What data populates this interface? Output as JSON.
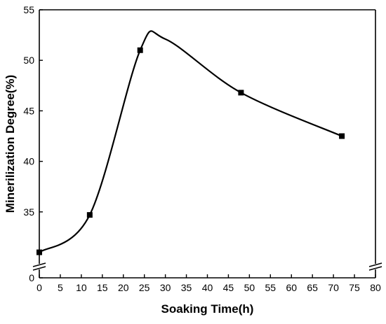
{
  "chart_data": {
    "type": "line",
    "title": "",
    "xlabel": "Soaking Time(h)",
    "ylabel": "Minerilization Degree(%)",
    "xlim": [
      0,
      80
    ],
    "x_ticks": [
      0,
      5,
      10,
      15,
      20,
      25,
      30,
      35,
      40,
      45,
      50,
      55,
      60,
      65,
      70,
      75,
      80
    ],
    "y_ticks": [
      35,
      40,
      45,
      50,
      55
    ],
    "y_ticks_below_break": [
      0
    ],
    "ylim_upper_segment": [
      30,
      55
    ],
    "y_axis_break": true,
    "grid": false,
    "legend": "none",
    "series": [
      {
        "x": [
          0,
          12,
          24,
          48,
          72
        ],
        "y": [
          31.0,
          34.7,
          51.0,
          46.8,
          42.5
        ],
        "marker": "square",
        "smoothed": true,
        "color": "#000000"
      }
    ],
    "curve_peak": {
      "x": 30,
      "y": 52.1
    }
  }
}
